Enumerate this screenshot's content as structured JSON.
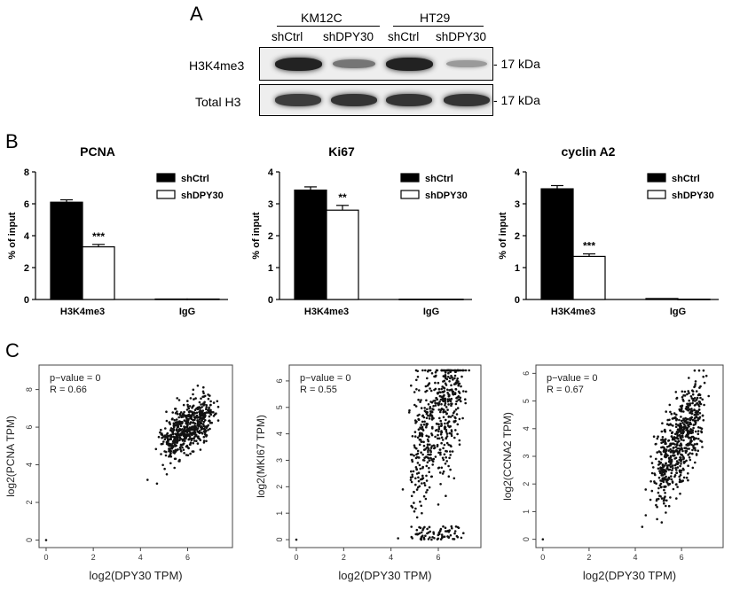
{
  "panel_a": {
    "letter": "A",
    "group_labels": [
      "KM12C",
      "HT29"
    ],
    "lane_labels": [
      "shCtrl",
      "shDPY30",
      "shCtrl",
      "shDPY30"
    ],
    "row_labels": [
      "H3K4me3",
      "Total H3"
    ],
    "kda_labels": [
      "- 17 kDa",
      "- 17 kDa"
    ],
    "band_intensity": {
      "H3K4me3": [
        0.9,
        0.45,
        0.9,
        0.25
      ],
      "Total H3": [
        0.75,
        0.8,
        0.8,
        0.8
      ]
    }
  },
  "panel_b": {
    "letter": "B",
    "legend": [
      "shCtrl",
      "shDPY30"
    ],
    "colors": {
      "shCtrl": "#000000",
      "shDPY30": "#ffffff"
    }
  },
  "panel_c": {
    "letter": "C",
    "xlabel": "log2(DPY30 TPM)"
  },
  "chart_data": [
    {
      "type": "bar",
      "title": "PCNA",
      "ylabel": "% of input",
      "categories": [
        "H3K4me3",
        "IgG"
      ],
      "series": [
        {
          "name": "shCtrl",
          "values": [
            6.1,
            0.03
          ],
          "errors": [
            0.15,
            0
          ]
        },
        {
          "name": "shDPY30",
          "values": [
            3.3,
            0.03
          ],
          "errors": [
            0.15,
            0
          ]
        }
      ],
      "significance": "***",
      "ylim": [
        0,
        8
      ],
      "yticks": [
        0,
        2,
        4,
        6,
        8
      ]
    },
    {
      "type": "bar",
      "title": "Ki67",
      "ylabel": "% of input",
      "categories": [
        "H3K4me3",
        "IgG"
      ],
      "series": [
        {
          "name": "shCtrl",
          "values": [
            3.43,
            0.01
          ],
          "errors": [
            0.1,
            0
          ]
        },
        {
          "name": "shDPY30",
          "values": [
            2.8,
            0.01
          ],
          "errors": [
            0.15,
            0
          ]
        }
      ],
      "significance": "**",
      "ylim": [
        0,
        4
      ],
      "yticks": [
        0,
        1,
        2,
        3,
        4
      ]
    },
    {
      "type": "bar",
      "title": "cyclin A2",
      "ylabel": "% of input",
      "categories": [
        "H3K4me3",
        "IgG"
      ],
      "series": [
        {
          "name": "shCtrl",
          "values": [
            3.47,
            0.03
          ],
          "errors": [
            0.1,
            0
          ]
        },
        {
          "name": "shDPY30",
          "values": [
            1.35,
            0.01
          ],
          "errors": [
            0.08,
            0
          ]
        }
      ],
      "significance": "***",
      "ylim": [
        0,
        4
      ],
      "yticks": [
        0,
        1,
        2,
        3,
        4
      ]
    },
    {
      "type": "scatter",
      "annotation": [
        "p−value = 0",
        "R = 0.66"
      ],
      "xlabel": "log2(DPY30 TPM)",
      "ylabel": "log2(PCNA TPM)",
      "xlim": [
        -0.3,
        7.9
      ],
      "ylim": [
        -0.4,
        9.3
      ],
      "xticks": [
        0,
        2,
        4,
        6
      ],
      "yticks": [
        0,
        2,
        4,
        6,
        8
      ],
      "model": {
        "seed": 11,
        "n": 560,
        "xmin": 4.6,
        "xmax": 7.3,
        "a": 0.78,
        "b": 1.3,
        "sd": 0.65,
        "ymin": 3.2,
        "ymax": 9.2,
        "floor_frac": 0,
        "floor_max": 0
      },
      "outliers": [
        [
          0,
          0
        ],
        [
          4.3,
          3.2
        ],
        [
          4.7,
          3.0
        ]
      ]
    },
    {
      "type": "scatter",
      "annotation": [
        "p−value = 0",
        "R = 0.55"
      ],
      "xlabel": "log2(DPY30 TPM)",
      "ylabel": "log2(MKI67 TPM)",
      "xlim": [
        -0.3,
        7.8
      ],
      "ylim": [
        -0.3,
        6.6
      ],
      "xticks": [
        0,
        2,
        4,
        6
      ],
      "yticks": [
        0,
        1,
        2,
        3,
        4,
        5,
        6
      ],
      "model": {
        "seed": 23,
        "n": 600,
        "xmin": 4.6,
        "xmax": 7.3,
        "a": 1.25,
        "b": -3.0,
        "sd": 1.2,
        "ymin": 0,
        "ymax": 6.4,
        "floor_frac": 0.14,
        "floor_max": 0.5
      },
      "outliers": [
        [
          0,
          0
        ],
        [
          4.3,
          0.05
        ],
        [
          4.5,
          1.9
        ]
      ]
    },
    {
      "type": "scatter",
      "annotation": [
        "p−value = 0",
        "R = 0.67"
      ],
      "xlabel": "log2(DPY30 TPM)",
      "ylabel": "log2(CCNA2 TPM)",
      "xlim": [
        -0.3,
        7.8
      ],
      "ylim": [
        -0.3,
        6.3
      ],
      "xticks": [
        0,
        2,
        4,
        6
      ],
      "yticks": [
        0,
        1,
        2,
        3,
        4,
        5,
        6
      ],
      "model": {
        "seed": 37,
        "n": 620,
        "xmin": 4.5,
        "xmax": 7.2,
        "a": 1.15,
        "b": -3.3,
        "sd": 0.75,
        "ymin": 0.3,
        "ymax": 6.1,
        "floor_frac": 0,
        "floor_max": 0
      },
      "outliers": [
        [
          0,
          0
        ],
        [
          4.3,
          0.45
        ],
        [
          4.45,
          1.8
        ]
      ]
    }
  ]
}
